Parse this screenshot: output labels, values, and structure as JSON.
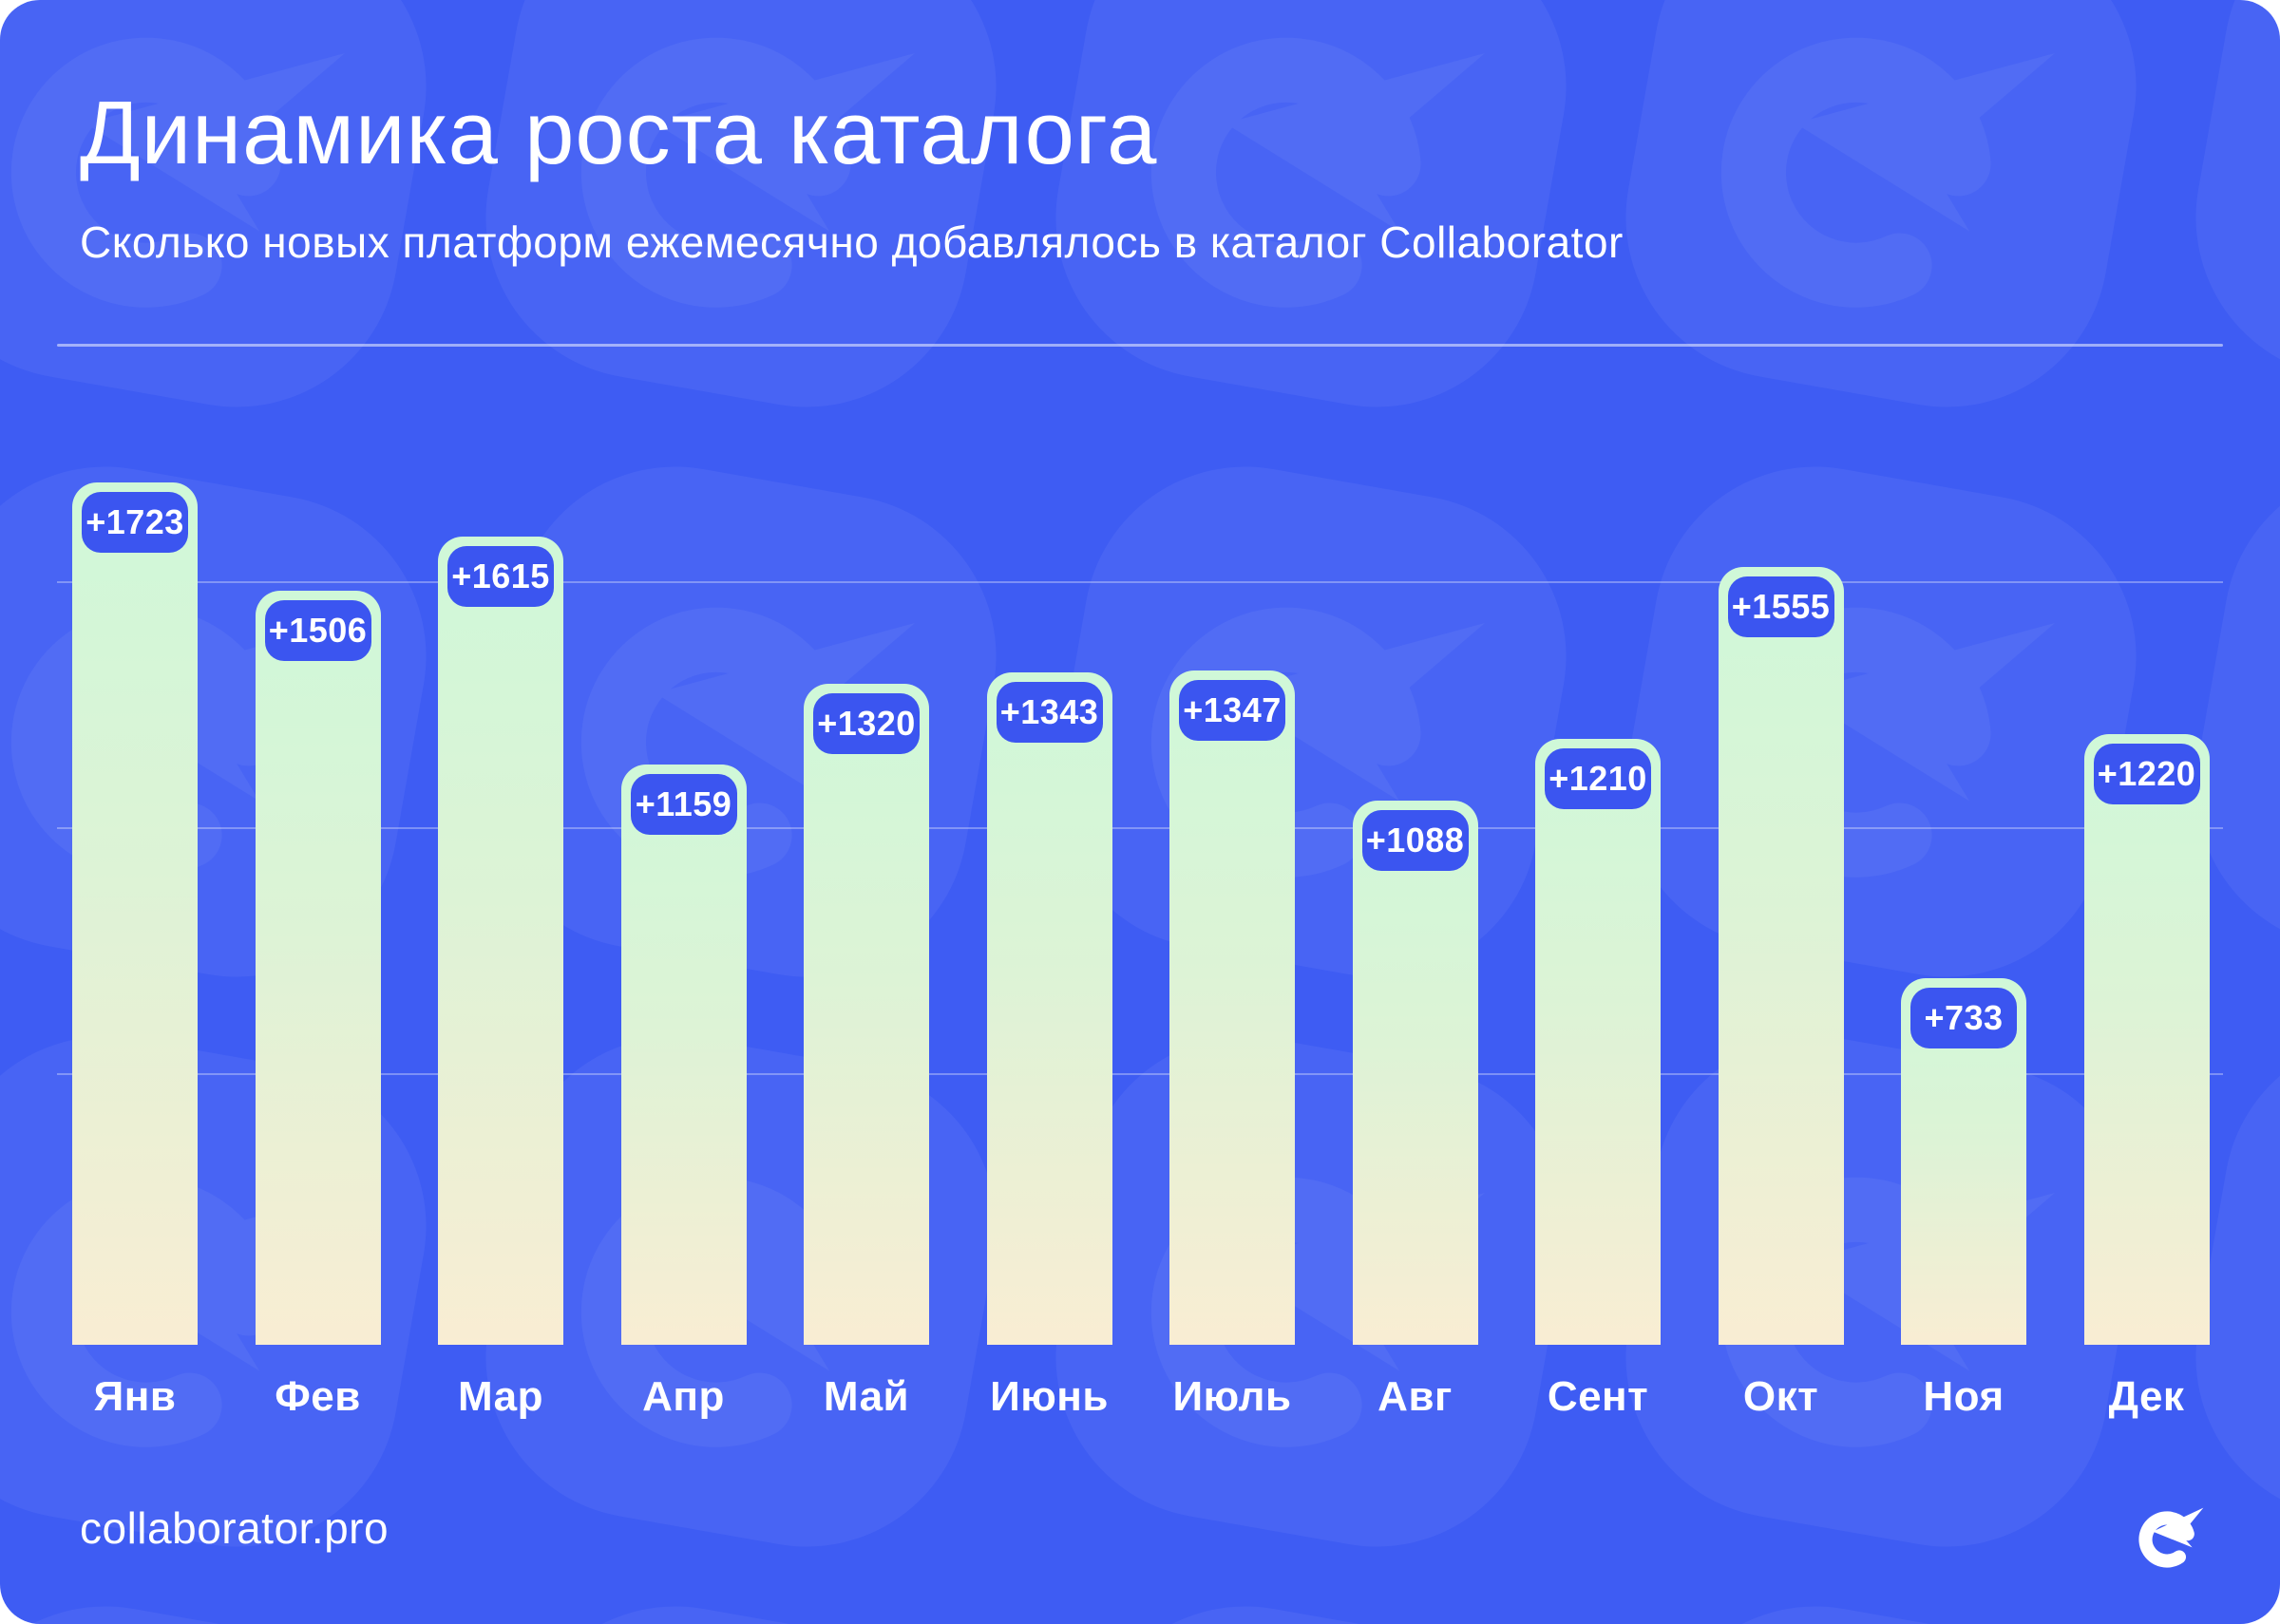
{
  "header": {
    "title": "Динамика роста каталога",
    "subtitle": "Сколько новых платформ ежемесячно добавлялось в каталог Collaborator"
  },
  "chart_data": {
    "type": "bar",
    "title": "Динамика роста каталога",
    "subtitle": "Сколько новых платформ ежемесячно добавлялось в каталог Collaborator",
    "categories": [
      "Янв",
      "Фев",
      "Мар",
      "Апр",
      "Май",
      "Июнь",
      "Июль",
      "Авг",
      "Сент",
      "Окт",
      "Ноя",
      "Дек"
    ],
    "values": [
      1723,
      1506,
      1615,
      1159,
      1320,
      1343,
      1347,
      1088,
      1210,
      1555,
      733,
      1220
    ],
    "labels": [
      "+1723",
      "+1506",
      "+1615",
      "+1159",
      "+1320",
      "+1343",
      "+1347",
      "+1088",
      "+1210",
      "+1555",
      "+733",
      "+1220"
    ],
    "xlabel": "",
    "ylabel": "",
    "ylim": [
      0,
      1800
    ],
    "grid": "3 unlabeled horizontal gridlines",
    "legend": "none",
    "bar_gradient_top": "#cff8d8",
    "bar_gradient_bottom": "#f9edd3",
    "value_badge_color": "#3b55f0",
    "value_badge_text_color": "#ffffff"
  },
  "footer": {
    "site": "collaborator.pro",
    "logo": "collaborator-arrow-logo"
  },
  "colors": {
    "background": "#3e5cf3",
    "badge": "#3b55f0",
    "bar_top": "#cff8d8",
    "bar_bottom": "#f9edd3",
    "text": "#ffffff",
    "gridline": "rgba(255,255,255,0.32)"
  }
}
